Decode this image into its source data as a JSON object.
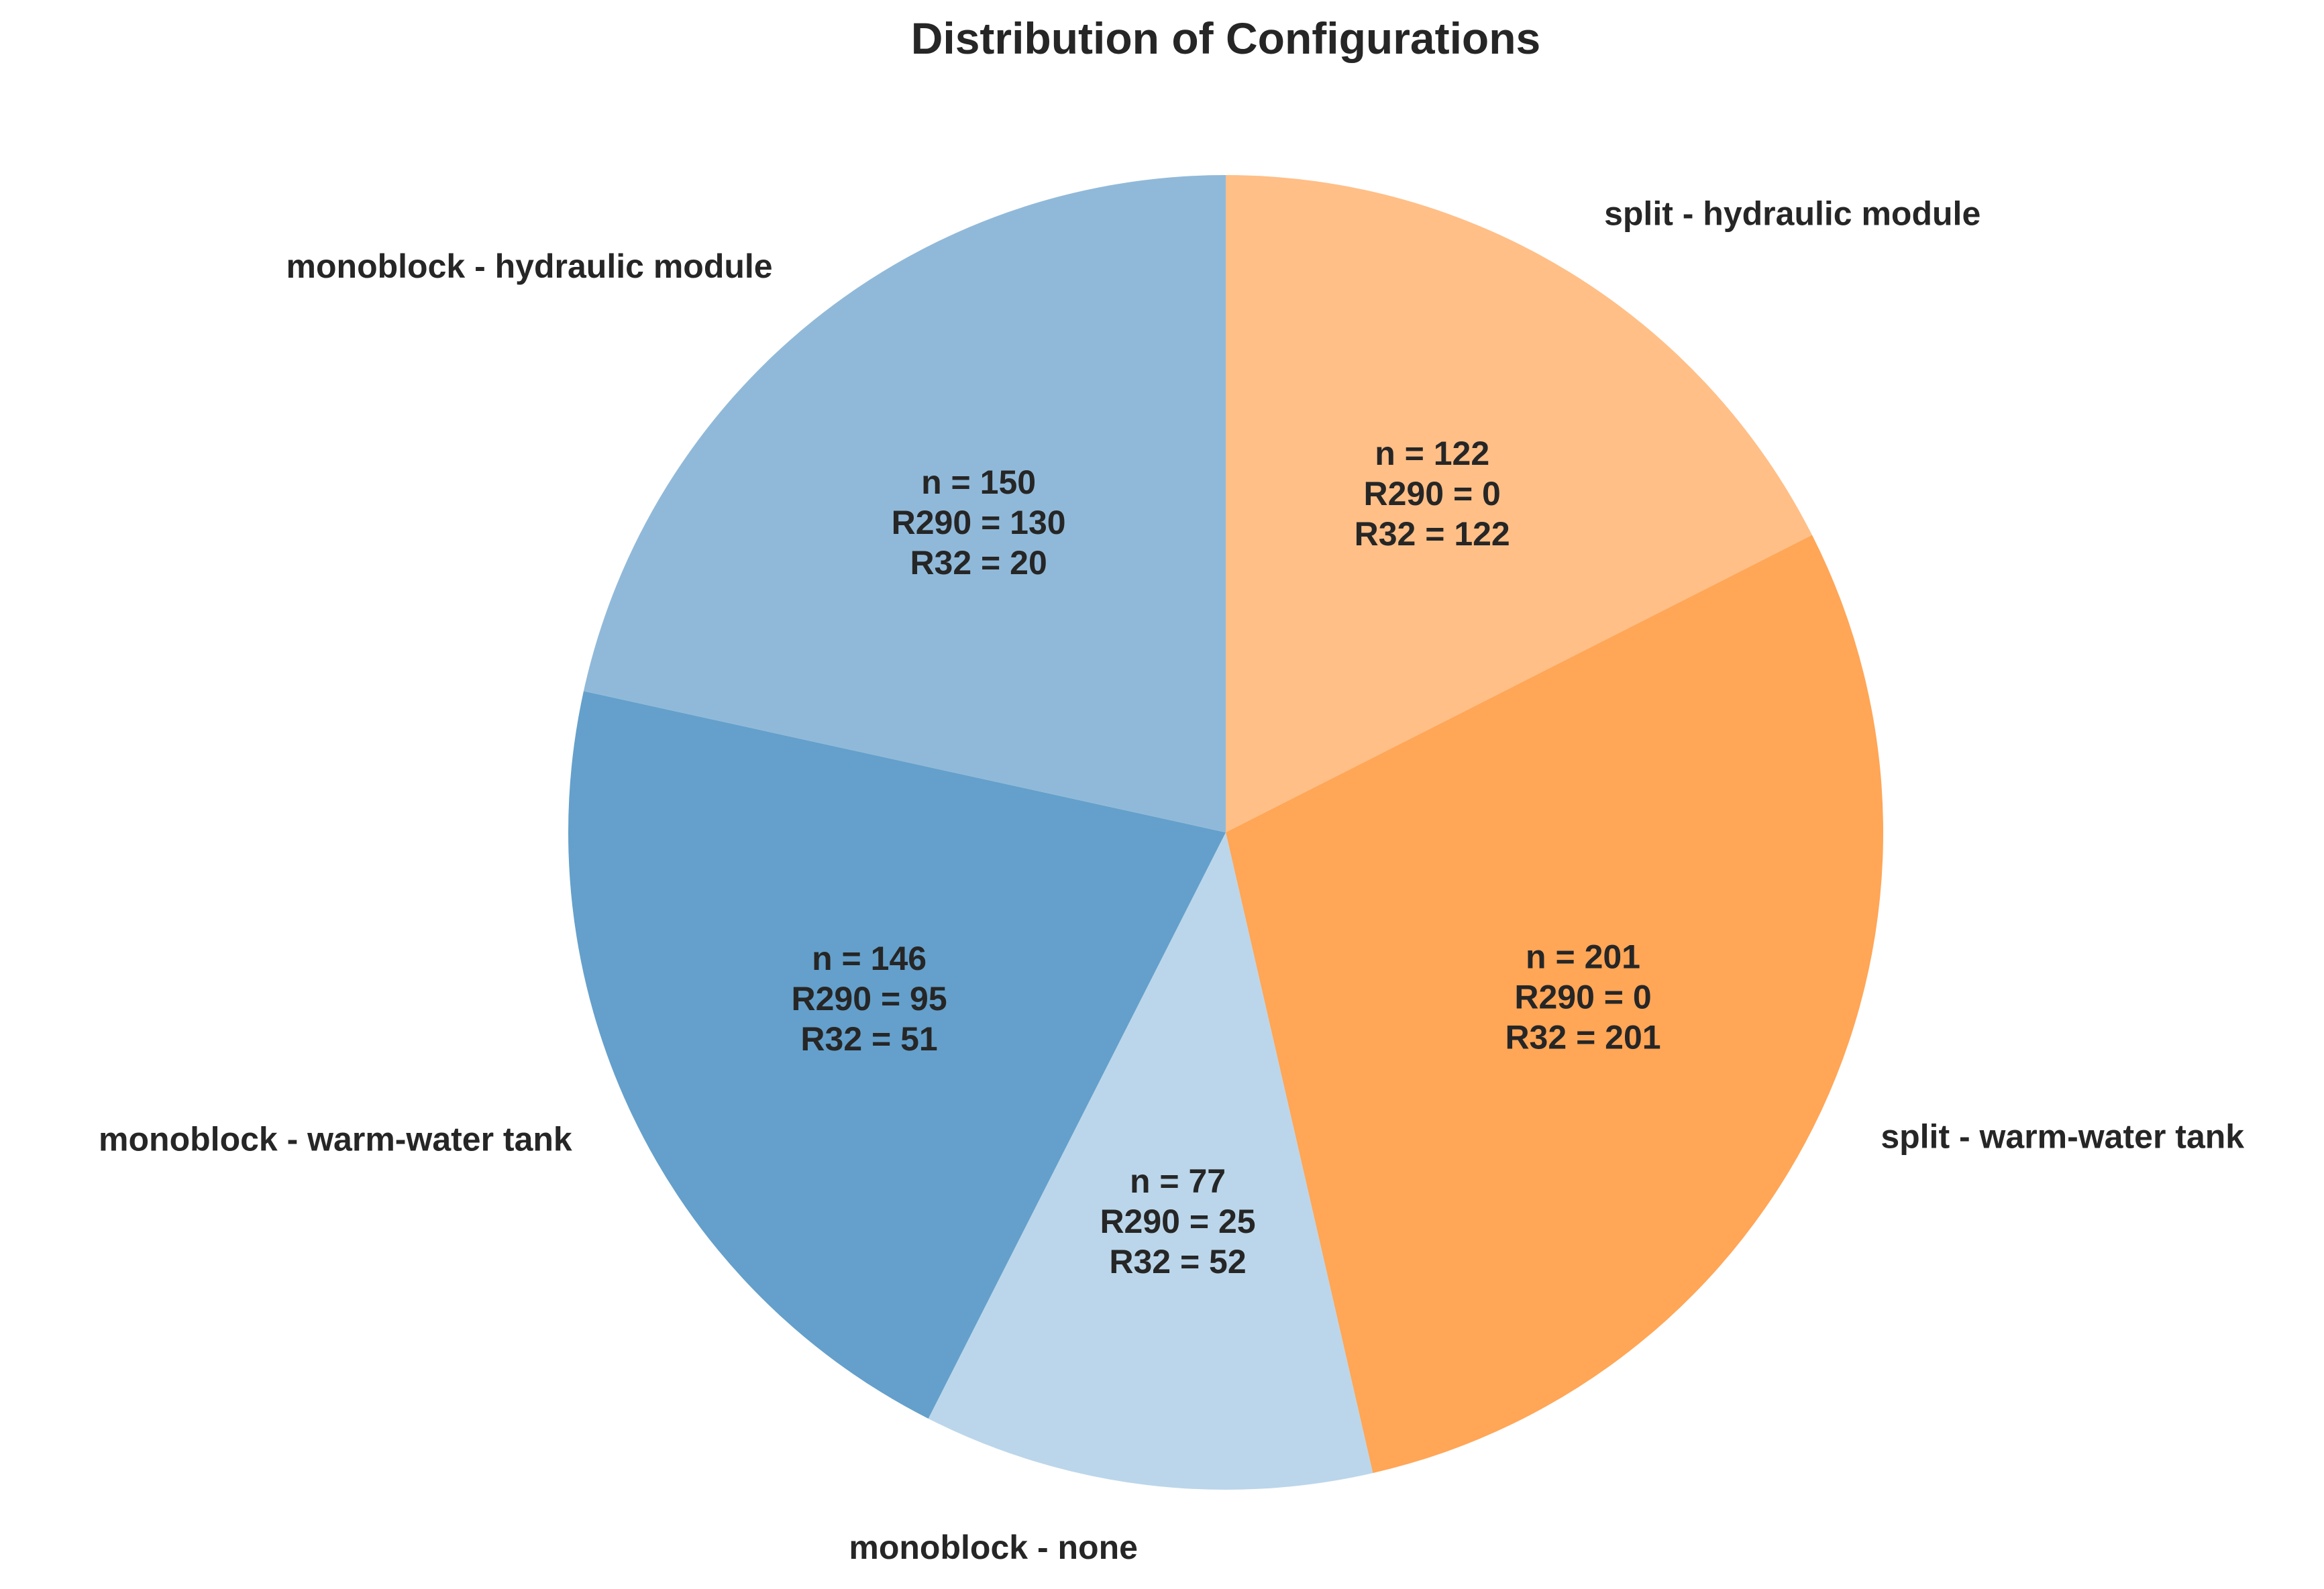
{
  "chart_data": {
    "type": "pie",
    "title": "Distribution of Configurations",
    "start_angle_deg": 90,
    "direction": "clockwise",
    "slices": [
      {
        "label": "split - hydraulic module",
        "value": 122,
        "color": "#ffbf87",
        "stats": [
          "n = 122",
          "R290 = 0",
          "R32 = 122"
        ]
      },
      {
        "label": "split - warm-water tank",
        "value": 201,
        "color": "#ffa657",
        "stats": [
          "n = 201",
          "R290 = 0",
          "R32 = 201"
        ]
      },
      {
        "label": "monoblock - none",
        "value": 77,
        "color": "#bbd6ea",
        "stats": [
          "n = 77",
          "R290 = 25",
          "R32 = 52"
        ]
      },
      {
        "label": "monoblock - warm-water tank",
        "value": 146,
        "color": "#64a0cb",
        "stats": [
          "n = 146",
          "R290 = 95",
          "R32 = 51"
        ]
      },
      {
        "label": "monoblock - hydraulic module",
        "value": 150,
        "color": "#90b9d9",
        "stats": [
          "n = 150",
          "R290 = 130",
          "R32 = 20"
        ]
      }
    ]
  }
}
